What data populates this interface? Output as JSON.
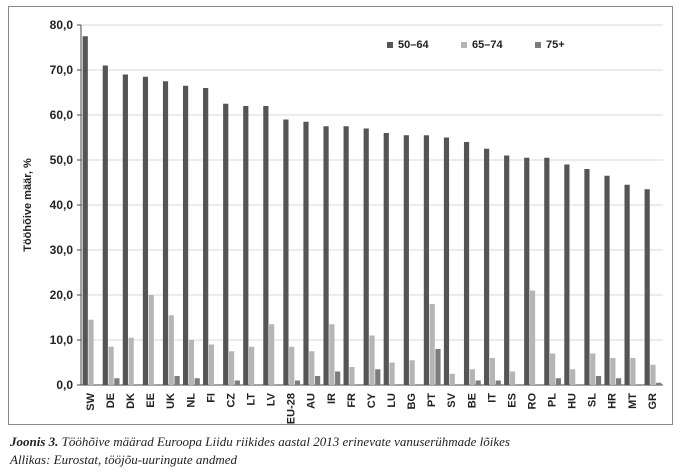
{
  "chart_data": {
    "type": "bar",
    "ylabel": "Tööhõive määr, %",
    "ylim": [
      0,
      80
    ],
    "ytick_step": 10,
    "ytick_labels": [
      "0,0",
      "10,0",
      "20,0",
      "30,0",
      "40,0",
      "50,0",
      "60,0",
      "70,0",
      "80,0"
    ],
    "grid": true,
    "legend_position": "top-right",
    "categories": [
      "SW",
      "DE",
      "DK",
      "EE",
      "UK",
      "NL",
      "FI",
      "CZ",
      "LT",
      "LV",
      "EU-28",
      "AU",
      "IR",
      "FR",
      "CY",
      "LU",
      "BG",
      "PT",
      "SV",
      "BE",
      "IT",
      "ES",
      "RO",
      "PL",
      "HU",
      "SL",
      "HR",
      "MT",
      "GR"
    ],
    "series": [
      {
        "name": "50–64",
        "color": "#555555",
        "values": [
          77.5,
          71.0,
          69.0,
          68.5,
          67.5,
          66.5,
          66.0,
          62.5,
          62.0,
          62.0,
          59.0,
          58.5,
          57.5,
          57.5,
          57.0,
          56.0,
          55.5,
          55.5,
          55.0,
          54.0,
          52.5,
          51.0,
          50.5,
          50.5,
          49.0,
          48.0,
          46.5,
          44.5,
          43.5
        ]
      },
      {
        "name": "65–74",
        "color": "#b5b5b5",
        "values": [
          14.5,
          8.5,
          10.5,
          20.0,
          15.5,
          10.0,
          9.0,
          7.5,
          8.5,
          13.5,
          8.5,
          7.5,
          13.5,
          4.0,
          11.0,
          5.0,
          5.5,
          18.0,
          2.5,
          3.5,
          6.0,
          3.0,
          21.0,
          7.0,
          3.5,
          7.0,
          6.0,
          6.0,
          4.5
        ]
      },
      {
        "name": "75+",
        "color": "#7c7c7c",
        "values": [
          0,
          1.5,
          0,
          0,
          2.0,
          1.5,
          0,
          1.0,
          0,
          0,
          1.0,
          2.0,
          3.0,
          0,
          3.5,
          0,
          0,
          8.0,
          0,
          1.0,
          1.0,
          0,
          0,
          1.5,
          0,
          2.0,
          1.5,
          0,
          0.5
        ]
      }
    ]
  },
  "caption": {
    "label": "Joonis 3.",
    "text": "Tööhõive määrad Euroopa Liidu riikides aastal 2013 erinevate vanuserühmade lõikes",
    "source": "Allikas: Eurostat, tööjõu-uuringute andmed"
  }
}
